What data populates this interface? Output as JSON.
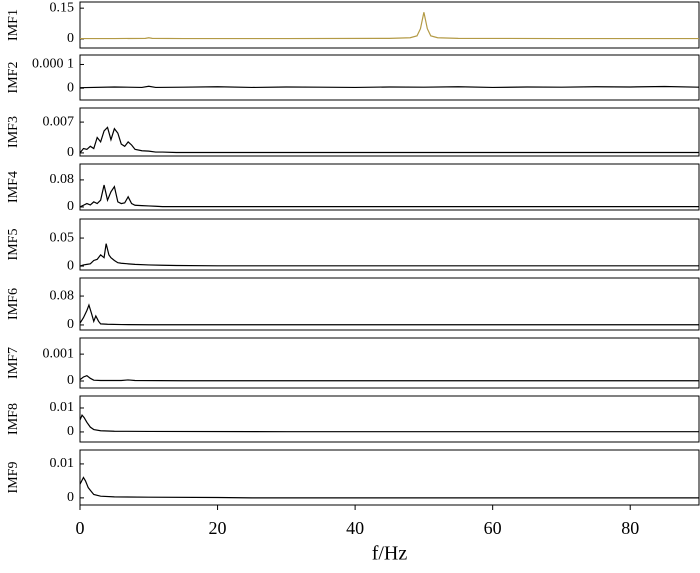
{
  "chart_data": [
    {
      "type": "line",
      "ylabel": "IMF1",
      "xlim": [
        0,
        90
      ],
      "ylim": [
        -0.044,
        0.18
      ],
      "yticks": [
        0,
        0.15
      ],
      "series": [
        {
          "color": "#b39a45",
          "x": [
            0,
            5,
            9.5,
            10,
            10.5,
            15,
            30,
            45,
            48,
            49,
            49.5,
            50,
            50.5,
            51,
            52,
            55,
            70,
            90
          ],
          "values": [
            0.002,
            0.002,
            0.003,
            0.006,
            0.003,
            0.002,
            0.002,
            0.003,
            0.006,
            0.015,
            0.05,
            0.13,
            0.05,
            0.015,
            0.006,
            0.003,
            0.002,
            0.002
          ]
        }
      ]
    },
    {
      "type": "line",
      "ylabel": "IMF2",
      "xlim": [
        0,
        90
      ],
      "ylim": [
        -5e-05,
        0.00014
      ],
      "yticks": [
        0,
        {
          "value": 0.0001,
          "label": "0.000 1"
        }
      ],
      "series": [
        {
          "color": "#000000",
          "x": [
            0,
            5,
            9,
            10,
            11,
            15,
            20,
            25,
            30,
            35,
            40,
            45,
            50,
            55,
            60,
            65,
            70,
            75,
            80,
            85,
            90
          ],
          "values": [
            2e-06,
            5e-06,
            3e-06,
            8e-06,
            3e-06,
            4e-06,
            6e-06,
            3e-06,
            5e-06,
            4e-06,
            3e-06,
            5e-06,
            4e-06,
            6e-06,
            3e-06,
            5e-06,
            4e-06,
            6e-06,
            5e-06,
            7e-06,
            4e-06
          ]
        }
      ]
    },
    {
      "type": "line",
      "ylabel": "IMF3",
      "xlim": [
        0,
        90
      ],
      "ylim": [
        -0.0007,
        0.0102
      ],
      "yticks": [
        0,
        0.007
      ],
      "series": [
        {
          "color": "#000000",
          "x": [
            0,
            0.5,
            1,
            1.5,
            2,
            2.5,
            3,
            3.5,
            4,
            4.5,
            5,
            5.5,
            6,
            6.5,
            7,
            7.5,
            8,
            9,
            10,
            11,
            12,
            14,
            20,
            30,
            50,
            90
          ],
          "values": [
            0,
            0.001,
            0.0008,
            0.0015,
            0.001,
            0.0035,
            0.0025,
            0.005,
            0.0058,
            0.003,
            0.0055,
            0.0045,
            0.002,
            0.0015,
            0.0025,
            0.0018,
            0.0008,
            0.0005,
            0.0004,
            0.0002,
            0.0002,
            0.0001,
            0.0001,
            0.0001,
            0.0001,
            0.0001
          ]
        }
      ]
    },
    {
      "type": "line",
      "ylabel": "IMF4",
      "xlim": [
        0,
        90
      ],
      "ylim": [
        -0.009,
        0.127
      ],
      "yticks": [
        0,
        0.08
      ],
      "series": [
        {
          "color": "#000000",
          "x": [
            0,
            0.5,
            1,
            1.5,
            2,
            2.5,
            3,
            3.5,
            4,
            4.5,
            5,
            5.5,
            6,
            6.5,
            7,
            7.5,
            8,
            9,
            10,
            11,
            12,
            15,
            30,
            90
          ],
          "values": [
            0,
            0.005,
            0.01,
            0.006,
            0.015,
            0.01,
            0.02,
            0.065,
            0.02,
            0.045,
            0.06,
            0.015,
            0.01,
            0.012,
            0.03,
            0.01,
            0.005,
            0.004,
            0.003,
            0.002,
            0.001,
            0.001,
            0.001,
            0.001
          ]
        }
      ]
    },
    {
      "type": "line",
      "ylabel": "IMF5",
      "xlim": [
        0,
        90
      ],
      "ylim": [
        -0.007,
        0.084
      ],
      "yticks": [
        0,
        0.05
      ],
      "series": [
        {
          "color": "#000000",
          "x": [
            0,
            0.5,
            1,
            1.5,
            2,
            2.5,
            3,
            3.5,
            3.8,
            4.2,
            4.5,
            5,
            5.5,
            6,
            7,
            8,
            10,
            12,
            14,
            20,
            90
          ],
          "values": [
            0,
            0.002,
            0.003,
            0.004,
            0.01,
            0.012,
            0.02,
            0.015,
            0.04,
            0.02,
            0.015,
            0.01,
            0.006,
            0.005,
            0.004,
            0.003,
            0.002,
            0.0015,
            0.001,
            0.0005,
            0.0005
          ]
        }
      ]
    },
    {
      "type": "line",
      "ylabel": "IMF6",
      "xlim": [
        0,
        90
      ],
      "ylim": [
        -0.014,
        0.13
      ],
      "yticks": [
        0,
        0.08
      ],
      "series": [
        {
          "color": "#000000",
          "x": [
            0,
            0.5,
            1,
            1.3,
            1.7,
            2,
            2.3,
            2.7,
            3,
            4,
            6,
            10,
            90
          ],
          "values": [
            0.005,
            0.02,
            0.04,
            0.055,
            0.03,
            0.01,
            0.025,
            0.01,
            0.003,
            0.002,
            0.001,
            0.0005,
            0.0005
          ]
        }
      ]
    },
    {
      "type": "line",
      "ylabel": "IMF7",
      "xlim": [
        0,
        90
      ],
      "ylim": [
        -0.00026,
        0.0016
      ],
      "yticks": [
        0,
        0.001
      ],
      "series": [
        {
          "color": "#000000",
          "x": [
            0,
            0.5,
            1,
            1.5,
            2,
            3,
            6,
            7,
            8,
            15,
            90
          ],
          "values": [
            5e-05,
            0.00015,
            0.0002,
            0.0001,
            3e-05,
            2e-05,
            2e-05,
            4e-05,
            2e-05,
            1e-05,
            1e-05
          ]
        }
      ]
    },
    {
      "type": "line",
      "ylabel": "IMF8",
      "xlim": [
        0,
        90
      ],
      "ylim": [
        -0.0042,
        0.015
      ],
      "yticks": [
        0,
        0.01
      ],
      "series": [
        {
          "color": "#000000",
          "x": [
            0,
            0.3,
            0.6,
            1,
            1.5,
            2,
            3,
            5,
            10,
            30,
            90
          ],
          "values": [
            0.005,
            0.007,
            0.006,
            0.004,
            0.002,
            0.001,
            0.0005,
            0.0003,
            0.0002,
            0.0001,
            0.0001
          ]
        }
      ]
    },
    {
      "type": "line",
      "ylabel": "IMF9",
      "xlim": [
        0,
        90
      ],
      "ylim": [
        -0.0021,
        0.0141
      ],
      "yticks": [
        0,
        0.01
      ],
      "xticks": [
        0,
        20,
        40,
        60,
        80
      ],
      "xlabel": "f/Hz",
      "series": [
        {
          "color": "#000000",
          "x": [
            0,
            0.5,
            0.8,
            1.2,
            1.6,
            2,
            3,
            5,
            10,
            20,
            25,
            90
          ],
          "values": [
            0.004,
            0.006,
            0.005,
            0.003,
            0.002,
            0.001,
            0.0005,
            0.0003,
            0.0002,
            0.0001,
            0,
            0
          ]
        }
      ]
    }
  ]
}
